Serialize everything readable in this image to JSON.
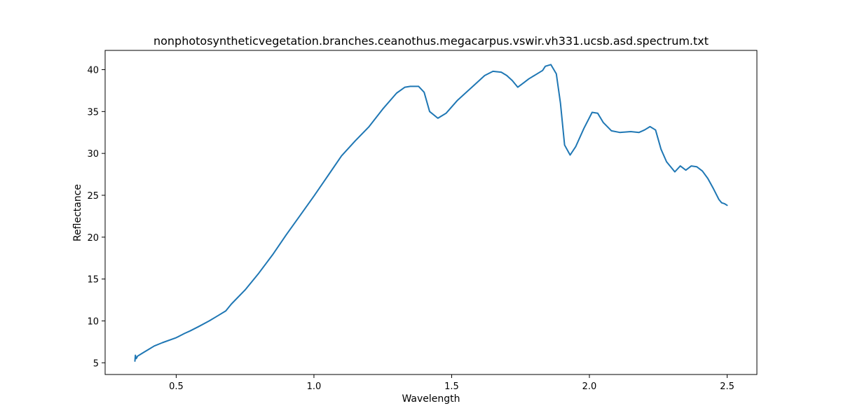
{
  "chart_data": {
    "type": "line",
    "title": "nonphotosyntheticvegetation.branches.ceanothus.megacarpus.vswir.vh331.ucsb.asd.spectrum.txt",
    "xlabel": "Wavelength",
    "ylabel": "Reflectance",
    "xlim": [
      0.242,
      2.608
    ],
    "ylim": [
      3.6,
      42.3
    ],
    "xticks": [
      0.5,
      1.0,
      1.5,
      2.0,
      2.5
    ],
    "xtick_labels": [
      "0.5",
      "1.0",
      "1.5",
      "2.0",
      "2.5"
    ],
    "yticks": [
      5,
      10,
      15,
      20,
      25,
      30,
      35,
      40
    ],
    "ytick_labels": [
      "5",
      "10",
      "15",
      "20",
      "25",
      "30",
      "35",
      "40"
    ],
    "grid": false,
    "series": [
      {
        "color": "#1f77b4",
        "x": [
          0.35,
          0.352,
          0.355,
          0.36,
          0.38,
          0.4,
          0.42,
          0.45,
          0.5,
          0.53,
          0.55,
          0.58,
          0.62,
          0.65,
          0.68,
          0.7,
          0.75,
          0.8,
          0.85,
          0.9,
          0.95,
          1.0,
          1.05,
          1.1,
          1.15,
          1.2,
          1.25,
          1.3,
          1.33,
          1.35,
          1.38,
          1.4,
          1.42,
          1.45,
          1.48,
          1.52,
          1.58,
          1.62,
          1.65,
          1.68,
          1.7,
          1.72,
          1.74,
          1.76,
          1.78,
          1.8,
          1.83,
          1.84,
          1.86,
          1.88,
          1.895,
          1.91,
          1.93,
          1.95,
          1.98,
          2.01,
          2.03,
          2.05,
          2.08,
          2.11,
          2.15,
          2.18,
          2.2,
          2.22,
          2.24,
          2.26,
          2.28,
          2.31,
          2.33,
          2.35,
          2.37,
          2.39,
          2.41,
          2.43,
          2.45,
          2.47,
          2.48,
          2.49,
          2.5
        ],
        "y": [
          5.2,
          5.9,
          5.5,
          5.8,
          6.2,
          6.6,
          7.0,
          7.4,
          8.0,
          8.5,
          8.8,
          9.3,
          10.0,
          10.6,
          11.2,
          12.0,
          13.7,
          15.7,
          17.9,
          20.3,
          22.6,
          24.9,
          27.3,
          29.7,
          31.5,
          33.2,
          35.3,
          37.2,
          37.9,
          38.0,
          38.0,
          37.3,
          35.0,
          34.2,
          34.8,
          36.3,
          38.1,
          39.3,
          39.8,
          39.7,
          39.3,
          38.7,
          37.9,
          38.4,
          38.9,
          39.3,
          39.9,
          40.4,
          40.6,
          39.5,
          36.0,
          31.0,
          29.8,
          30.8,
          33.0,
          34.9,
          34.8,
          33.7,
          32.7,
          32.5,
          32.6,
          32.5,
          32.8,
          33.2,
          32.8,
          30.5,
          29.0,
          27.8,
          28.5,
          28.0,
          28.5,
          28.4,
          27.9,
          27.0,
          25.8,
          24.5,
          24.1,
          24.0,
          23.8
        ]
      }
    ]
  }
}
